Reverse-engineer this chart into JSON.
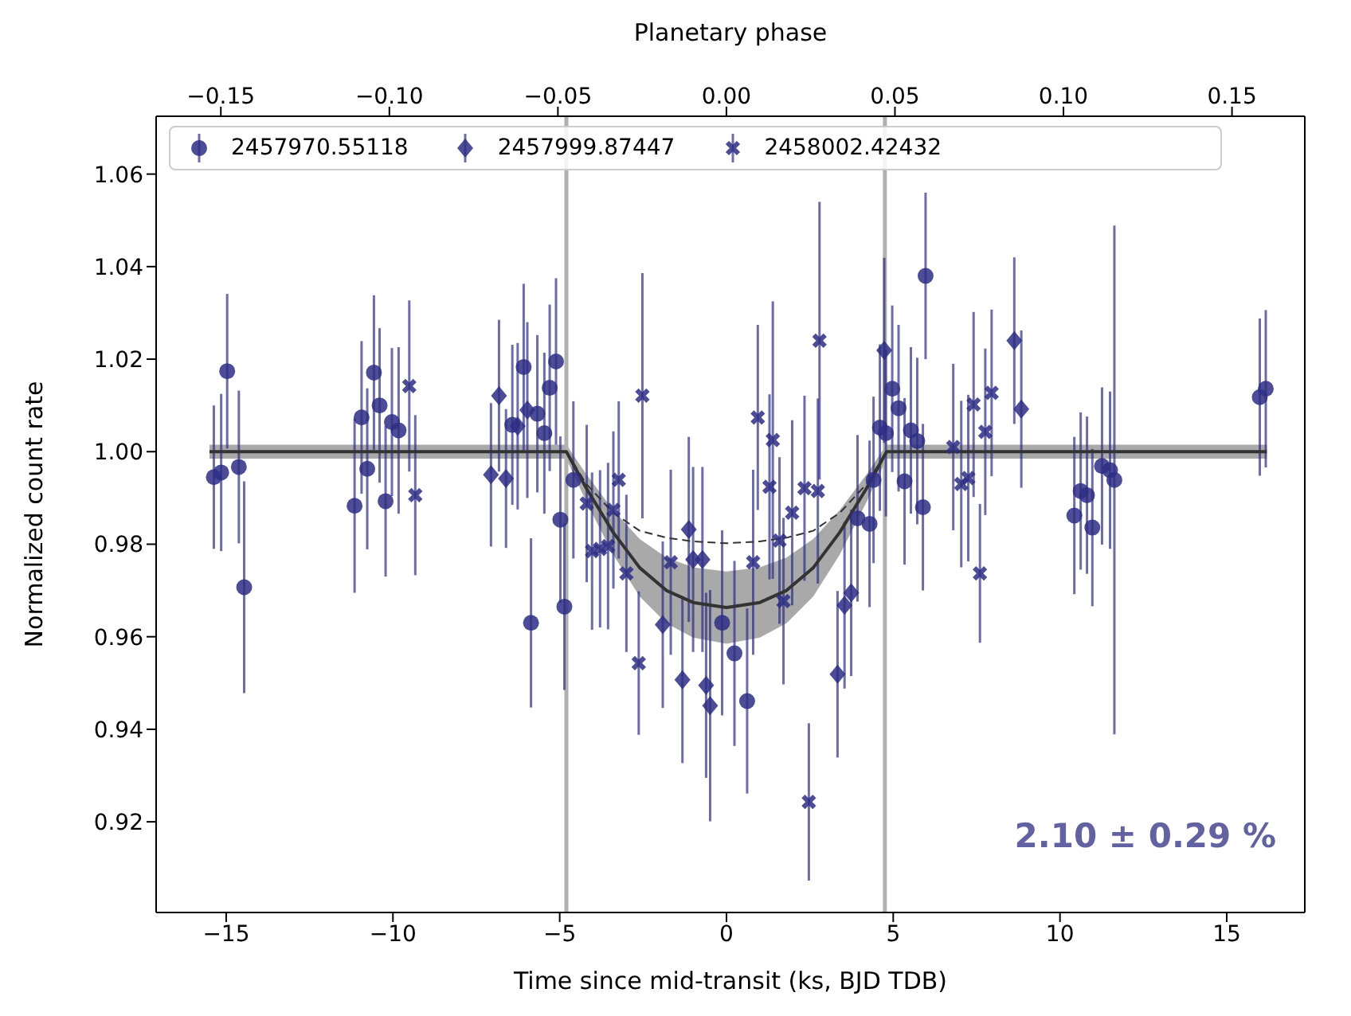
{
  "chart_data": {
    "type": "scatter",
    "xlabel": "Time since mid-transit (ks, BJD TDB)",
    "ylabel": "Normalized count rate",
    "x2label": "Planetary phase",
    "xlim": [
      -17.1,
      17.34
    ],
    "ylim": [
      0.9004,
      1.0725
    ],
    "x2lim": [
      -0.1692,
      0.1716
    ],
    "xticks": [
      {
        "value": -15,
        "label": "−15"
      },
      {
        "value": -10,
        "label": "−10"
      },
      {
        "value": -5,
        "label": "−5"
      },
      0,
      5,
      10,
      15
    ],
    "yticks": [
      0.92,
      0.94,
      0.96,
      0.98,
      {
        "value": 1,
        "label": "1.00"
      },
      1.02,
      1.04,
      1.06
    ],
    "x2ticks": [
      {
        "value": -0.15,
        "label": "−0.15"
      },
      {
        "value": -0.1,
        "label": "−0.10"
      },
      {
        "value": -0.05,
        "label": "−0.05"
      },
      {
        "value": 0,
        "label": "0.00"
      },
      {
        "value": 0.05,
        "label": "0.05"
      },
      {
        "value": 0.1,
        "label": "0.10"
      },
      {
        "value": 0.15,
        "label": "0.15"
      }
    ],
    "legend": "top",
    "ref_lines": [
      {
        "axis": "x",
        "value": -4.8,
        "color": "#b0b0b0"
      },
      {
        "axis": "x",
        "value": 4.75,
        "color": "#b0b0b0"
      }
    ],
    "annotations": [
      "2.10 ± 0.29 %"
    ],
    "series": [
      {
        "name": "2457970.55118",
        "color": "#2e2e85",
        "marker": "circle",
        "x": [
          -15.37,
          -15.15,
          -14.97,
          -14.62,
          -14.46,
          -11.15,
          -10.94,
          -10.77,
          -10.57,
          -10.4,
          -10.22,
          -10.03,
          -9.83,
          -6.42,
          -6.08,
          -5.86,
          -5.67,
          -5.46,
          -5.3,
          -5.11,
          -4.98,
          -4.86,
          -4.59,
          -0.13,
          0.24,
          0.62,
          3.93,
          4.29,
          4.41,
          4.6,
          4.78,
          4.97,
          5.16,
          5.34,
          5.53,
          5.72,
          5.89,
          5.97,
          10.43,
          10.62,
          10.81,
          10.97,
          11.26,
          11.5,
          11.63,
          15.99,
          16.17
        ],
        "values": [
          0.9945,
          0.9955,
          1.0174,
          0.9967,
          0.9707,
          0.9883,
          1.0074,
          0.9963,
          1.0171,
          1.01,
          0.9893,
          1.0064,
          1.0046,
          1.0058,
          1.0183,
          0.963,
          1.0082,
          1.004,
          1.0138,
          1.0195,
          0.9853,
          0.9665,
          0.9939,
          0.963,
          0.9564,
          0.9461,
          0.9856,
          0.9844,
          0.9939,
          1.0052,
          1.004,
          1.0136,
          1.0094,
          0.9936,
          1.0046,
          1.0023,
          0.988,
          1.038,
          0.9862,
          0.9915,
          0.9906,
          0.9836,
          0.9969,
          0.996,
          0.9939,
          1.0118,
          1.0136
        ],
        "errors": [
          0.0155,
          0.017,
          0.0167,
          0.0165,
          0.0229,
          0.0188,
          0.0165,
          0.0174,
          0.0167,
          0.0167,
          0.0163,
          0.016,
          0.018,
          0.0173,
          0.018,
          0.0183,
          0.017,
          0.0174,
          0.018,
          0.018,
          0.018,
          0.018,
          0.017,
          0.02,
          0.02,
          0.02,
          0.018,
          0.018,
          0.018,
          0.018,
          0.018,
          0.018,
          0.018,
          0.018,
          0.018,
          0.018,
          0.018,
          0.018,
          0.017,
          0.017,
          0.017,
          0.017,
          0.017,
          0.017,
          0.055,
          0.017,
          0.017
        ]
      },
      {
        "name": "2457999.87447",
        "color": "#2e2e85",
        "marker": "diamond",
        "x": [
          -7.06,
          -6.82,
          -6.61,
          -6.26,
          -5.97,
          -1.91,
          -1.32,
          -1.13,
          -1.0,
          -0.72,
          -0.61,
          -0.49,
          3.33,
          3.54,
          3.74,
          4.73,
          8.63,
          8.84
        ],
        "values": [
          0.995,
          1.0121,
          0.9942,
          1.0055,
          1.009,
          0.9626,
          0.9507,
          0.9832,
          0.9767,
          0.9767,
          0.9495,
          0.9451,
          0.9519,
          0.9668,
          0.9695,
          1.0219,
          1.024,
          1.0092
        ],
        "errors": [
          0.0155,
          0.0164,
          0.015,
          0.018,
          0.019,
          0.018,
          0.018,
          0.02,
          0.02,
          0.02,
          0.02,
          0.025,
          0.018,
          0.018,
          0.018,
          0.02,
          0.018,
          0.017
        ]
      },
      {
        "name": "2458002.42432",
        "color": "#2e2e85",
        "marker": "cross",
        "x": [
          -9.51,
          -9.33,
          -4.19,
          -4.03,
          -3.79,
          -3.55,
          -3.39,
          -3.23,
          -3.0,
          -2.63,
          -2.52,
          -1.67,
          0.8,
          0.94,
          1.29,
          1.39,
          1.59,
          1.71,
          1.97,
          2.34,
          2.47,
          2.74,
          2.79,
          6.8,
          7.04,
          7.25,
          7.41,
          7.6,
          7.76,
          7.95
        ],
        "values": [
          1.0142,
          0.9906,
          0.9888,
          0.9785,
          0.979,
          0.9796,
          0.9874,
          0.9939,
          0.9737,
          0.9543,
          1.0121,
          0.9761,
          0.9761,
          1.0074,
          0.9924,
          1.0025,
          0.9808,
          0.9677,
          0.9868,
          0.9921,
          0.9243,
          0.9915,
          1.024,
          1.001,
          0.993,
          0.9943,
          1.0102,
          0.9737,
          1.0043,
          1.0127
        ],
        "errors": [
          0.0185,
          0.0173,
          0.017,
          0.017,
          0.017,
          0.018,
          0.017,
          0.017,
          0.017,
          0.0155,
          0.0265,
          0.02,
          0.02,
          0.02,
          0.02,
          0.03,
          0.018,
          0.018,
          0.02,
          0.02,
          0.017,
          0.02,
          0.03,
          0.018,
          0.018,
          0.018,
          0.02,
          0.015,
          0.018,
          0.018
        ]
      },
      {
        "type": "line",
        "color": "#333333",
        "line_style": "solid",
        "x": [
          -15.5,
          -4.8,
          -4.2,
          -3.4,
          -2.6,
          -1.8,
          -1.0,
          0,
          1.0,
          1.8,
          2.6,
          3.4,
          4.2,
          4.8,
          16.2
        ],
        "values": [
          1,
          1,
          0.9921,
          0.9826,
          0.9749,
          0.97,
          0.9674,
          0.9663,
          0.9674,
          0.97,
          0.9749,
          0.9826,
          0.9921,
          1,
          1
        ],
        "lower": [
          0.9985,
          0.9985,
          0.9891,
          0.9778,
          0.9687,
          0.9629,
          0.9598,
          0.9585,
          0.9598,
          0.9629,
          0.9687,
          0.9778,
          0.9891,
          0.9985,
          0.9985
        ],
        "upper": [
          1.0015,
          1.0015,
          0.9951,
          0.9874,
          0.9811,
          0.9771,
          0.975,
          0.9741,
          0.975,
          0.9771,
          0.9811,
          0.9874,
          0.9951,
          1.0015,
          1.0015
        ]
      },
      {
        "type": "line",
        "color": "#333333",
        "line_style": "dashed",
        "x": [
          -4.8,
          -4.2,
          -3.4,
          -2.6,
          -1.8,
          -1.0,
          0,
          1.0,
          1.8,
          2.6,
          3.4,
          4.2,
          4.8
        ],
        "values": [
          1,
          0.993,
          0.9868,
          0.9829,
          0.9814,
          0.9806,
          0.9802,
          0.9806,
          0.9814,
          0.9829,
          0.9868,
          0.993,
          1
        ]
      }
    ]
  }
}
